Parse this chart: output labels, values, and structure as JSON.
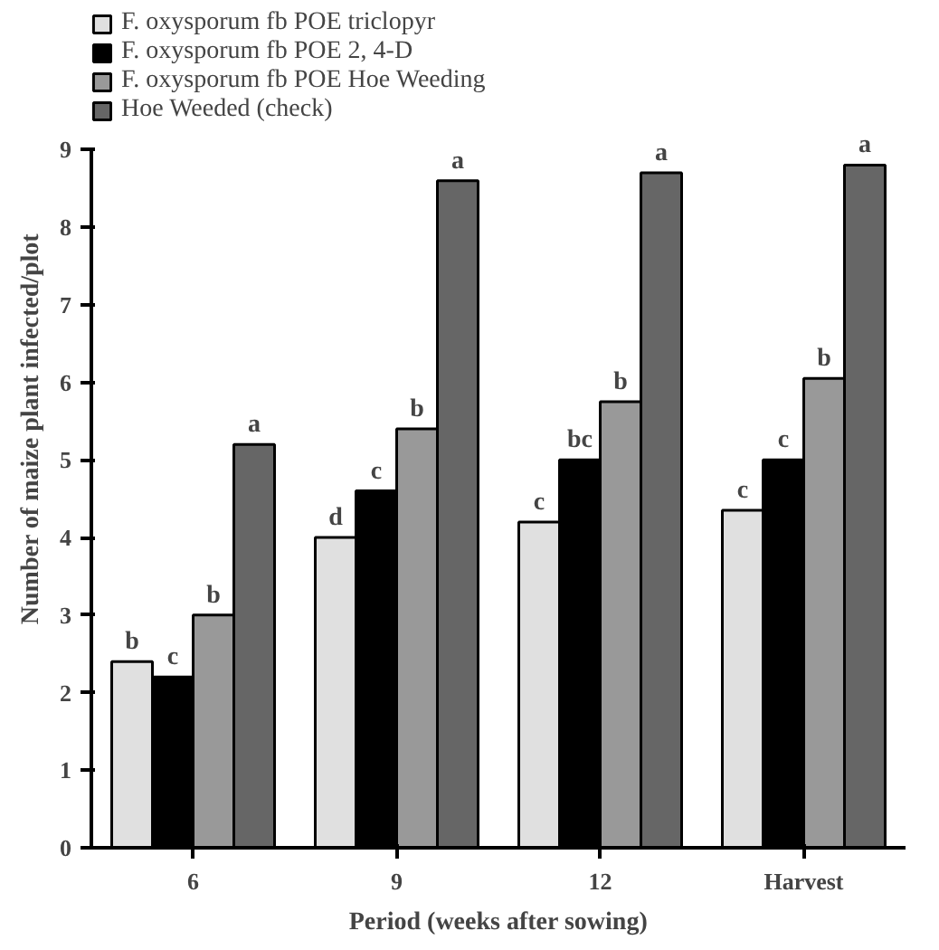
{
  "chart_data": {
    "type": "bar",
    "xlabel": "Period (weeks after sowing)",
    "ylabel": "Number of maize plant infected/plot",
    "categories": [
      "6",
      "9",
      "12",
      "Harvest"
    ],
    "series": [
      {
        "name": "F. oxysporum fb POE triclopyr",
        "color": "#e0e0e0",
        "values": [
          2.4,
          4.0,
          4.2,
          4.35
        ],
        "value_labels": [
          "b",
          "d",
          "c",
          "c"
        ]
      },
      {
        "name": "F. oxysporum fb POE 2, 4-D",
        "color": "#000000",
        "values": [
          2.2,
          4.6,
          5.0,
          5.0
        ],
        "value_labels": [
          "c",
          "c",
          "bc",
          "c"
        ]
      },
      {
        "name": "F. oxysporum fb POE Hoe Weeding",
        "color": "#999999",
        "values": [
          3.0,
          5.4,
          5.75,
          6.05
        ],
        "value_labels": [
          "b",
          "b",
          "b",
          "b"
        ]
      },
      {
        "name": "Hoe Weeded (check)",
        "color": "#666666",
        "values": [
          5.2,
          8.6,
          8.7,
          8.8
        ],
        "value_labels": [
          "a",
          "a",
          "a",
          "a"
        ]
      }
    ],
    "ylim": [
      0,
      9
    ],
    "yticks": [
      0,
      1,
      2,
      3,
      4,
      5,
      6,
      7,
      8,
      9
    ],
    "grid": false,
    "legend": "top left"
  }
}
